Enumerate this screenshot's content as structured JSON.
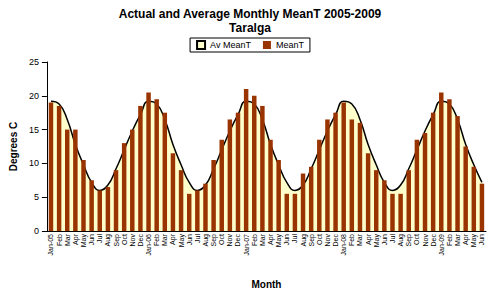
{
  "chart_data": {
    "type": "bar",
    "title": "Actual and Average Monthly MeanT 2005-2009",
    "subtitle": "Taralga",
    "x_label": "Month",
    "y_label": "Degrees C",
    "categories": [
      "Jan-05",
      "Feb",
      "Mar",
      "Apr",
      "May",
      "Jun",
      "Jul",
      "Aug",
      "Sep",
      "Oct",
      "Nov",
      "Dec",
      "Jan-06",
      "Feb",
      "Mar",
      "Apr",
      "May",
      "Jun",
      "Jul",
      "Aug",
      "Sep",
      "Oct",
      "Nov",
      "Dec",
      "Jan-07",
      "Feb",
      "Mar",
      "Apr",
      "May",
      "Jun",
      "Jul",
      "Aug",
      "Sep",
      "Oct",
      "Nov",
      "Dec",
      "Jan-08",
      "Feb",
      "Mar",
      "Apr",
      "May",
      "Jun",
      "Jul",
      "Aug",
      "Sep",
      "Oct",
      "Nov",
      "Dec",
      "Jan-09",
      "Feb",
      "Mar",
      "Apr",
      "May",
      "Jun"
    ],
    "series": [
      {
        "name": "Av MeanT",
        "type": "line",
        "color": "#ffffcc",
        "values": [
          19.2,
          18.8,
          16.5,
          12.8,
          9.8,
          7.2,
          6.0,
          6.8,
          9.2,
          12.0,
          14.8,
          17.2,
          19.2,
          18.8,
          16.5,
          12.8,
          9.8,
          7.2,
          6.0,
          6.8,
          9.2,
          12.0,
          14.8,
          17.2,
          19.2,
          18.8,
          16.5,
          12.8,
          9.8,
          7.2,
          6.0,
          6.8,
          9.2,
          12.0,
          14.8,
          17.2,
          19.2,
          18.8,
          16.5,
          12.8,
          9.8,
          7.2,
          6.0,
          6.8,
          9.2,
          12.0,
          14.8,
          17.2,
          19.2,
          18.8,
          16.5,
          12.8,
          9.8,
          7.2
        ]
      },
      {
        "name": "MeanT",
        "type": "bar",
        "color": "#993300",
        "values": [
          19.0,
          18.5,
          15.0,
          15.0,
          10.5,
          7.5,
          6.0,
          6.5,
          9.0,
          13.0,
          15.0,
          18.5,
          20.5,
          19.5,
          17.5,
          11.5,
          9.0,
          5.5,
          6.0,
          7.0,
          10.5,
          13.5,
          16.5,
          17.5,
          21.0,
          20.0,
          18.5,
          13.5,
          10.5,
          5.5,
          5.5,
          8.5,
          9.5,
          13.5,
          16.5,
          17.5,
          19.0,
          16.5,
          16.0,
          11.5,
          9.0,
          7.5,
          5.5,
          5.5,
          9.0,
          13.5,
          14.5,
          17.5,
          20.5,
          19.5,
          17.0,
          12.5,
          9.5,
          7.0
        ]
      }
    ],
    "ylim": [
      0,
      25
    ],
    "yticks": [
      0,
      5,
      10,
      15,
      20,
      25
    ],
    "grid": false,
    "legend": "top"
  }
}
